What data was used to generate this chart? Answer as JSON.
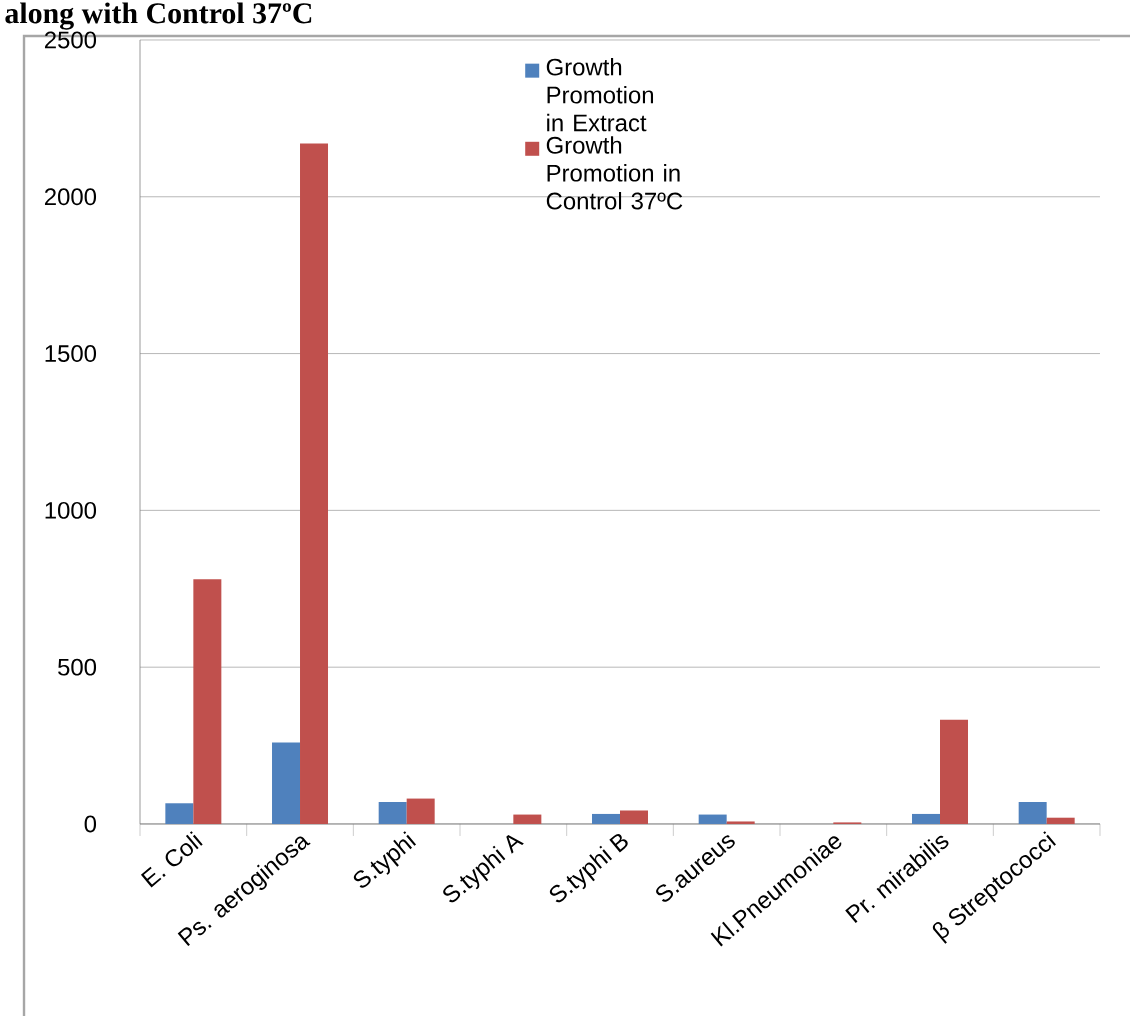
{
  "chart_data": {
    "type": "bar",
    "title": "along with Control 37ºC",
    "categories": [
      "E.  Coli",
      "Ps. aeroginosa",
      "S.typhi",
      "S.typhi A",
      "S.typhi B",
      "S.aureus",
      "Kl.Pneumoniae",
      "Pr. mirabilis",
      "β Streptococci"
    ],
    "series": [
      {
        "name": "Growth Promotion in Extract",
        "color": "#4f81bd",
        "values": [
          66,
          260,
          70,
          0,
          32,
          30,
          0,
          32,
          70
        ]
      },
      {
        "name": "Growth Promotion in Control 37ºC",
        "color": "#c0504d",
        "values": [
          780,
          2170,
          81,
          30,
          43,
          8,
          5,
          332,
          20
        ]
      }
    ],
    "ylim": [
      0,
      2500
    ],
    "yticks": [
      0,
      500,
      1000,
      1500,
      2000,
      2500
    ],
    "grid": "y",
    "legend": "top"
  }
}
